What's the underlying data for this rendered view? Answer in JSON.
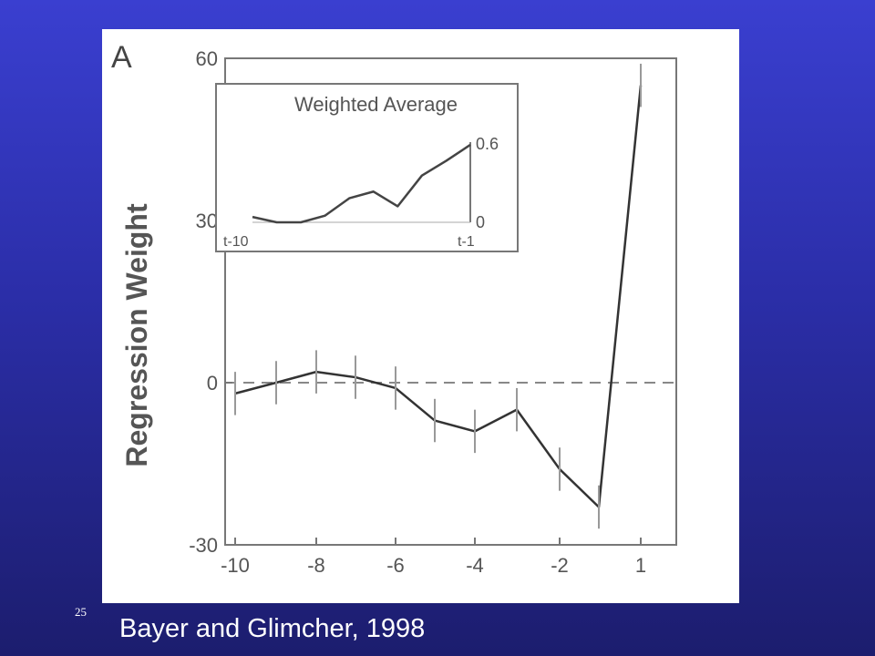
{
  "slide": {
    "number": "25",
    "caption": "Bayer and Glimcher, 1998"
  },
  "chart_data": [
    {
      "type": "line",
      "panel_label": "A",
      "ylabel": "Regression Weight",
      "x": [
        -10,
        -9,
        -8,
        -7,
        -6,
        -5,
        -4,
        -3,
        -2,
        -1,
        1
      ],
      "xticks": [
        -10,
        -8,
        -6,
        -4,
        -2,
        1
      ],
      "xtick_labels": [
        "-10",
        "-8",
        "-6",
        "-4",
        "-2",
        "1"
      ],
      "yticks": [
        -30,
        0,
        30,
        60
      ],
      "ylim": [
        -30,
        60
      ],
      "reference_line": {
        "y": 0,
        "style": "dashed"
      },
      "series": [
        {
          "values": [
            -2,
            0,
            2,
            1,
            -1,
            -7,
            -9,
            -5,
            -16,
            -23,
            55
          ],
          "error": [
            4,
            4,
            4,
            4,
            4,
            4,
            4,
            4,
            4,
            4,
            4
          ]
        }
      ]
    },
    {
      "type": "line",
      "title": "Weighted Average",
      "x": [
        1,
        2,
        3,
        4,
        5,
        6,
        7,
        8,
        9,
        10
      ],
      "xtick_labels": [
        "t-10",
        "t-1"
      ],
      "ytick_labels": [
        "0.6",
        "0"
      ],
      "ylim": [
        0,
        0.6
      ],
      "series": [
        {
          "values": [
            0.04,
            0.0,
            0.0,
            0.05,
            0.18,
            0.23,
            0.12,
            0.35,
            0.46,
            0.58
          ]
        }
      ]
    }
  ]
}
